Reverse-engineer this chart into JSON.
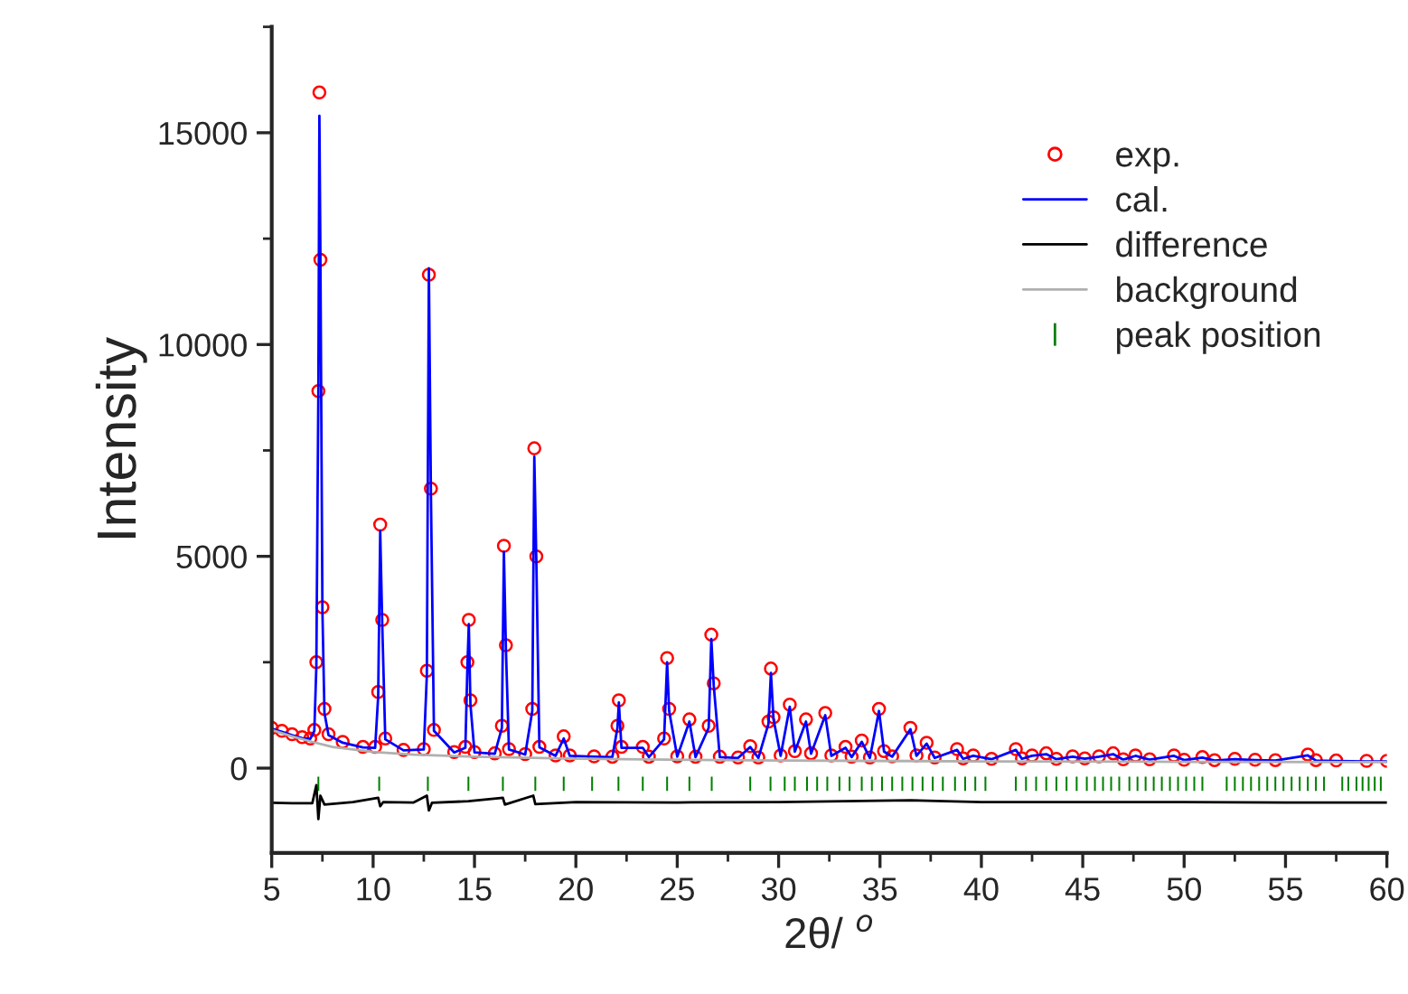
{
  "chart_data": {
    "type": "scatter",
    "xlabel": "2θ/ $^{o}$",
    "ylabel": "Intensity",
    "xlim": [
      5,
      60
    ],
    "xticks": [
      5,
      10,
      15,
      20,
      25,
      30,
      35,
      40,
      45,
      50,
      55,
      60
    ],
    "ylim": [
      -2000,
      17500
    ],
    "yticks": [
      0,
      5000,
      10000,
      15000
    ],
    "grid": false,
    "legend": "top right",
    "x": [
      5.0,
      5.5,
      6.0,
      6.5,
      6.9,
      7.1,
      7.2,
      7.3,
      7.35,
      7.4,
      7.5,
      7.6,
      7.8,
      8.5,
      9.5,
      10.1,
      10.25,
      10.35,
      10.45,
      10.6,
      11.5,
      12.5,
      12.65,
      12.75,
      12.85,
      13.0,
      14.0,
      14.55,
      14.65,
      14.72,
      14.8,
      15.0,
      16.0,
      16.35,
      16.45,
      16.55,
      16.7,
      17.5,
      17.85,
      17.95,
      18.05,
      18.2,
      19.0,
      19.4,
      19.7,
      20.9,
      21.8,
      22.05,
      22.12,
      22.25,
      23.3,
      23.6,
      24.35,
      24.5,
      24.6,
      25.0,
      25.6,
      25.9,
      26.55,
      26.68,
      26.8,
      27.1,
      28.0,
      28.6,
      29.0,
      29.5,
      29.62,
      29.75,
      30.1,
      30.55,
      30.8,
      31.35,
      31.6,
      32.3,
      32.6,
      33.3,
      33.6,
      34.1,
      34.5,
      34.95,
      35.2,
      35.6,
      36.5,
      36.8,
      37.3,
      37.7,
      38.8,
      39.1,
      39.6,
      40.5,
      41.7,
      42.0,
      42.5,
      43.2,
      43.7,
      44.5,
      45.1,
      45.8,
      46.5,
      47.0,
      47.6,
      48.3,
      49.5,
      50.0,
      50.9,
      51.5,
      52.5,
      53.5,
      54.5,
      56.1,
      56.5,
      57.5,
      59.0,
      60.0
    ],
    "series": [
      {
        "name": "exp.",
        "marker": "circle",
        "color": "#ff0000",
        "values": [
          950,
          880,
          800,
          730,
          700,
          900,
          2500,
          8900,
          15950,
          12000,
          3800,
          1400,
          800,
          620,
          500,
          500,
          1800,
          5750,
          3500,
          700,
          430,
          450,
          2300,
          11650,
          6600,
          900,
          380,
          500,
          2500,
          3500,
          1600,
          380,
          350,
          1000,
          5250,
          2900,
          450,
          330,
          1400,
          7550,
          5000,
          500,
          300,
          750,
          300,
          280,
          270,
          1000,
          1600,
          500,
          500,
          270,
          700,
          2600,
          1400,
          280,
          1150,
          270,
          1000,
          3150,
          2000,
          270,
          250,
          520,
          250,
          1100,
          2350,
          1200,
          300,
          1500,
          400,
          1150,
          350,
          1300,
          300,
          500,
          270,
          650,
          250,
          1400,
          400,
          280,
          950,
          300,
          600,
          250,
          450,
          230,
          300,
          220,
          450,
          230,
          300,
          350,
          220,
          280,
          230,
          280,
          350,
          210,
          300,
          210,
          300,
          200,
          260,
          190,
          220,
          200,
          190,
          320,
          190,
          180,
          170,
          170
        ]
      },
      {
        "name": "cal.",
        "type": "line",
        "line_style": "solid",
        "color": "#0000ff",
        "values": [
          930,
          860,
          780,
          710,
          690,
          880,
          2400,
          9000,
          15400,
          12100,
          3700,
          1300,
          780,
          600,
          490,
          480,
          1700,
          5600,
          3400,
          680,
          420,
          440,
          2200,
          11800,
          6500,
          880,
          370,
          480,
          2400,
          3400,
          1500,
          370,
          340,
          950,
          5100,
          2800,
          440,
          320,
          1350,
          7350,
          4900,
          490,
          290,
          700,
          290,
          270,
          260,
          950,
          1550,
          480,
          480,
          260,
          680,
          2500,
          1350,
          270,
          1100,
          260,
          950,
          3050,
          1950,
          260,
          240,
          500,
          240,
          1050,
          2250,
          1150,
          290,
          1450,
          390,
          1100,
          340,
          1250,
          290,
          480,
          260,
          620,
          240,
          1350,
          390,
          270,
          920,
          290,
          580,
          240,
          430,
          220,
          290,
          210,
          430,
          220,
          290,
          330,
          210,
          270,
          220,
          270,
          330,
          200,
          290,
          200,
          290,
          190,
          250,
          180,
          210,
          190,
          180,
          300,
          180,
          170,
          160,
          160
        ]
      },
      {
        "name": "difference",
        "type": "line",
        "line_style": "solid",
        "color": "#000000",
        "x": [
          5.0,
          6.0,
          7.0,
          7.2,
          7.3,
          7.4,
          7.6,
          9.0,
          10.25,
          10.35,
          10.5,
          12.0,
          12.65,
          12.75,
          12.9,
          14.7,
          16.4,
          16.5,
          17.9,
          18.0,
          20.0,
          25.0,
          30.0,
          36.5,
          40.0,
          45.0,
          50.0,
          55.0,
          60.0
        ],
        "values": [
          -820,
          -830,
          -830,
          -400,
          -1200,
          -650,
          -860,
          -800,
          -700,
          -900,
          -800,
          -810,
          -650,
          -1000,
          -820,
          -780,
          -700,
          -860,
          -650,
          -850,
          -800,
          -810,
          -800,
          -760,
          -800,
          -800,
          -800,
          -810,
          -810
        ]
      },
      {
        "name": "background",
        "type": "line",
        "line_style": "solid",
        "color": "#b0b0b0",
        "x": [
          5,
          6,
          7,
          8,
          10,
          12,
          15,
          20,
          30,
          40,
          50,
          60
        ],
        "values": [
          900,
          750,
          620,
          500,
          380,
          320,
          270,
          220,
          180,
          160,
          150,
          140
        ]
      },
      {
        "name": "peak position",
        "type": "bar",
        "color": "#008000",
        "x": [
          7.3,
          10.3,
          12.7,
          14.7,
          16.4,
          18.0,
          19.4,
          20.8,
          22.1,
          23.3,
          24.5,
          25.6,
          26.7,
          28.6,
          29.6,
          30.3,
          30.8,
          31.4,
          31.9,
          32.4,
          33.0,
          33.5,
          34.1,
          34.6,
          35.1,
          35.6,
          36.1,
          36.6,
          37.1,
          37.6,
          38.1,
          38.7,
          39.2,
          39.7,
          40.2,
          41.7,
          42.2,
          42.7,
          43.2,
          43.7,
          44.2,
          44.7,
          45.2,
          45.6,
          46.0,
          46.4,
          46.8,
          47.3,
          47.7,
          48.1,
          48.5,
          48.9,
          49.3,
          49.7,
          50.1,
          50.5,
          50.9,
          52.1,
          52.5,
          52.9,
          53.3,
          53.7,
          54.1,
          54.5,
          54.9,
          55.3,
          55.7,
          56.1,
          56.5,
          56.9,
          57.8,
          58.1,
          58.5,
          58.8,
          59.1,
          59.4,
          59.7
        ],
        "base": [
          -540,
          -540,
          -540,
          -540,
          -540,
          -540,
          -540,
          -540,
          -540,
          -540,
          -540,
          -540,
          -540,
          -540,
          -540,
          -540,
          -540,
          -540,
          -540,
          -540,
          -540,
          -540,
          -540,
          -540,
          -540,
          -540,
          -540,
          -540,
          -540,
          -540,
          -540,
          -540,
          -540,
          -540,
          -540,
          -540,
          -540,
          -540,
          -540,
          -540,
          -540,
          -540,
          -540,
          -540,
          -540,
          -540,
          -540,
          -540,
          -540,
          -540,
          -540,
          -540,
          -540,
          -540,
          -540,
          -540,
          -540,
          -540,
          -540,
          -540,
          -540,
          -540,
          -540,
          -540,
          -540,
          -540,
          -540,
          -540,
          -540,
          -540,
          -540,
          -540,
          -540,
          -540,
          -540,
          -540,
          -540
        ],
        "values": [
          340,
          340,
          340,
          340,
          340,
          340,
          340,
          340,
          340,
          340,
          340,
          340,
          340,
          340,
          340,
          340,
          340,
          340,
          340,
          340,
          340,
          340,
          340,
          340,
          340,
          340,
          340,
          340,
          340,
          340,
          340,
          340,
          340,
          340,
          340,
          340,
          340,
          340,
          340,
          340,
          340,
          340,
          340,
          340,
          340,
          340,
          340,
          340,
          340,
          340,
          340,
          340,
          340,
          340,
          340,
          340,
          340,
          340,
          340,
          340,
          340,
          340,
          340,
          340,
          340,
          340,
          340,
          340,
          340,
          340,
          340,
          340,
          340,
          340,
          340,
          340,
          340
        ]
      }
    ]
  }
}
